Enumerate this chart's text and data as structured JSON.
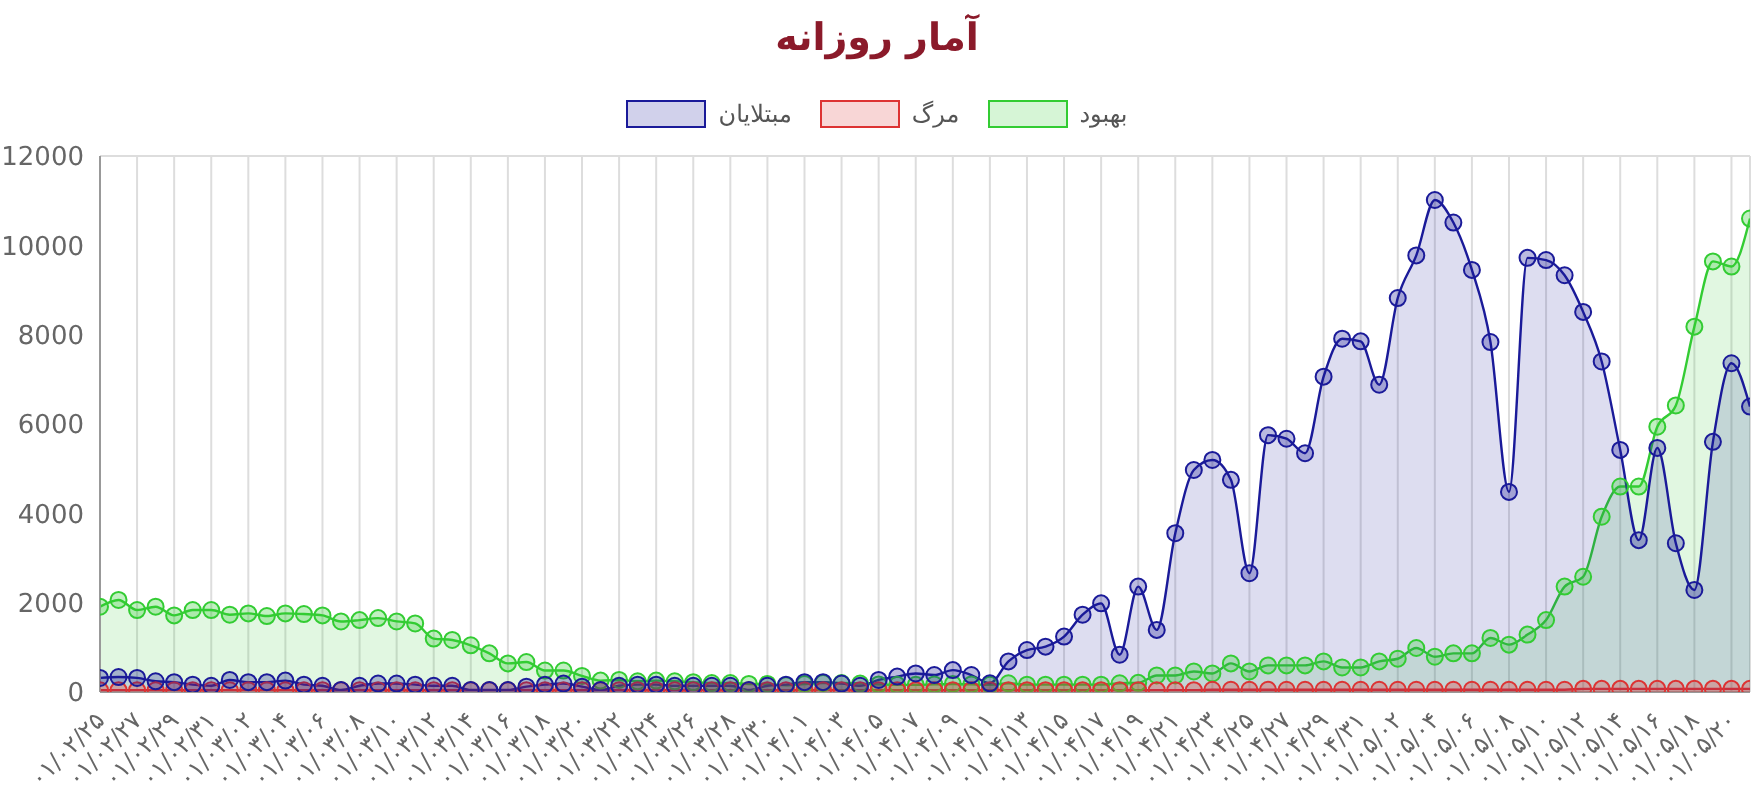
{
  "chart_data": {
    "type": "area",
    "title": "آمار روزانه",
    "categories": [
      "۰۱/۰۲/۲۵",
      null,
      "۰۱/۰۲/۲۷",
      null,
      "۰۱/۰۲/۲۹",
      null,
      "۰۱/۰۲/۳۱",
      null,
      "۰۱/۰۳/۰۲",
      null,
      "۰۱/۰۳/۰۴",
      null,
      "۰۱/۰۳/۰۶",
      null,
      "۰۱/۰۳/۰۸",
      null,
      "۰۱/۰۳/۱۰",
      null,
      "۰۱/۰۳/۱۲",
      null,
      "۰۱/۰۳/۱۴",
      null,
      "۰۱/۰۳/۱۶",
      null,
      "۰۱/۰۳/۱۸",
      null,
      "۰۱/۰۳/۲۰",
      null,
      "۰۱/۰۳/۲۲",
      null,
      "۰۱/۰۳/۲۴",
      null,
      "۰۱/۰۳/۲۶",
      null,
      "۰۱/۰۳/۲۸",
      null,
      "۰۱/۰۳/۳۰",
      null,
      "۰۱/۰۴/۰۱",
      null,
      "۰۱/۰۴/۰۳",
      null,
      "۰۱/۰۴/۰۵",
      null,
      "۰۱/۰۴/۰۷",
      null,
      "۰۱/۰۴/۰۹",
      null,
      "۰۱/۰۴/۱۱",
      null,
      "۰۱/۰۴/۱۳",
      null,
      "۰۱/۰۴/۱۵",
      null,
      "۰۱/۰۴/۱۷",
      null,
      "۰۱/۰۴/۱۹",
      null,
      "۰۱/۰۴/۲۱",
      null,
      "۰۱/۰۴/۲۳",
      null,
      "۰۱/۰۴/۲۵",
      null,
      "۰۱/۰۴/۲۷",
      null,
      "۰۱/۰۴/۲۹",
      null,
      "۰۱/۰۴/۳۱",
      null,
      "۰۱/۰۵/۰۲",
      null,
      "۰۱/۰۵/۰۴",
      null,
      "۰۱/۰۵/۰۶",
      null,
      "۰۱/۰۵/۰۸",
      null,
      "۰۱/۰۵/۱۰",
      null,
      "۰۱/۰۵/۱۲",
      null,
      "۰۱/۰۵/۱۴",
      null,
      "۰۱/۰۵/۱۶",
      null,
      "۰۱/۰۵/۱۸",
      null,
      "۰۱/۰۵/۲۰",
      null
    ],
    "series": [
      {
        "name": "بهبود",
        "color": "#33cc33",
        "values": [
          1910,
          2060,
          1835,
          1910,
          1715,
          1835,
          1835,
          1730,
          1760,
          1700,
          1760,
          1745,
          1715,
          1580,
          1610,
          1655,
          1580,
          1535,
          1195,
          1165,
          1045,
          865,
          640,
          670,
          480,
          480,
          360,
          255,
          270,
          240,
          255,
          240,
          220,
          200,
          200,
          180,
          180,
          150,
          180,
          200,
          200,
          190,
          170,
          160,
          160,
          170,
          180,
          170,
          160,
          195,
          165,
          165,
          165,
          165,
          165,
          195,
          205,
          370,
          370,
          460,
          415,
          640,
          460,
          595,
          595,
          595,
          685,
          550,
          550,
          685,
          745,
          985,
          790,
          865,
          865,
          1210,
          1060,
          1285,
          1610,
          2360,
          2580,
          3925,
          4600,
          4600,
          5940,
          6415,
          8180,
          9640,
          9525,
          10600
        ]
      },
      {
        "name": "مرگ",
        "color": "#dd3333",
        "values": [
          40,
          40,
          40,
          40,
          40,
          40,
          40,
          40,
          40,
          40,
          40,
          40,
          40,
          40,
          40,
          40,
          40,
          40,
          40,
          40,
          40,
          40,
          40,
          40,
          40,
          40,
          40,
          40,
          40,
          40,
          40,
          40,
          40,
          40,
          40,
          40,
          40,
          40,
          40,
          40,
          40,
          40,
          40,
          40,
          40,
          40,
          40,
          40,
          40,
          40,
          40,
          40,
          40,
          40,
          40,
          40,
          40,
          40,
          40,
          40,
          50,
          50,
          50,
          50,
          50,
          50,
          50,
          50,
          50,
          50,
          50,
          50,
          50,
          50,
          50,
          50,
          50,
          50,
          50,
          50,
          70,
          70,
          70,
          70,
          70,
          70,
          70,
          70,
          70,
          70
        ]
      },
      {
        "name": "مبتلایان",
        "color": "#1a1a99",
        "values": [
          315,
          335,
          315,
          240,
          220,
          165,
          140,
          270,
          220,
          220,
          255,
          165,
          140,
          45,
          140,
          190,
          190,
          165,
          140,
          140,
          45,
          45,
          45,
          120,
          165,
          190,
          120,
          45,
          140,
          165,
          165,
          140,
          140,
          140,
          140,
          45,
          140,
          165,
          220,
          220,
          190,
          140,
          270,
          345,
          415,
          380,
          490,
          380,
          195,
          685,
          940,
          1015,
          1240,
          1730,
          1985,
          835,
          2360,
          1390,
          3555,
          4970,
          5195,
          4750,
          2660,
          5750,
          5670,
          5345,
          7060,
          7910,
          7850,
          6880,
          8820,
          9775,
          11015,
          10510,
          9450,
          7835,
          4480,
          9720,
          9670,
          9330,
          8510,
          7400,
          5420,
          3400,
          5465,
          3330,
          2285,
          5600,
          7360,
          6390
        ]
      }
    ],
    "ylim": [
      0,
      12000
    ],
    "yticks": [
      0,
      2000,
      4000,
      6000,
      8000,
      10000,
      12000
    ],
    "grid": true,
    "legend": "top",
    "marker": "circle"
  }
}
